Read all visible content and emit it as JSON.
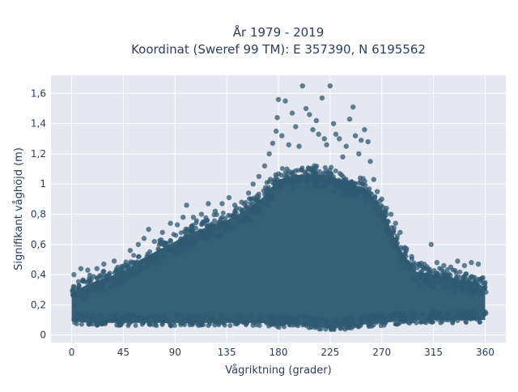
{
  "chart_data": {
    "type": "scatter",
    "title_line1": "År 1979 - 2019",
    "title_line2": "Koordinat (Sweref 99 TM): E 357390, N 6195562",
    "xlabel": "Vågriktning (grader)",
    "ylabel": "Signifikant våghöjd (m)",
    "xlim": [
      -18,
      378
    ],
    "ylim": [
      -0.05,
      1.72
    ],
    "xticks": [
      0,
      45,
      90,
      135,
      180,
      225,
      270,
      315,
      360
    ],
    "xtick_labels": [
      "0",
      "45",
      "90",
      "135",
      "180",
      "225",
      "270",
      "315",
      "360"
    ],
    "yticks": [
      0,
      0.2,
      0.4,
      0.6,
      0.8,
      1.0,
      1.2,
      1.4,
      1.6
    ],
    "ytick_labels": [
      "0",
      "0,2",
      "0,4",
      "0,6",
      "0,8",
      "1",
      "1,2",
      "1,4",
      "1,6"
    ],
    "grid": true,
    "marker_color": "#2f5a72",
    "plot_bgcolor": "#e5e8f1",
    "envelope": {
      "description": "Upper envelope of dense point cloud, direction (degrees) vs wave height (m)",
      "x": [
        0,
        15,
        30,
        45,
        60,
        75,
        90,
        105,
        120,
        135,
        150,
        165,
        180,
        195,
        210,
        225,
        240,
        255,
        270,
        285,
        300,
        315,
        330,
        345,
        360
      ],
      "y_upper": [
        0.3,
        0.36,
        0.4,
        0.44,
        0.52,
        0.58,
        0.64,
        0.7,
        0.74,
        0.78,
        0.84,
        0.92,
        1.05,
        1.08,
        1.08,
        1.08,
        1.02,
        1.0,
        0.86,
        0.6,
        0.44,
        0.42,
        0.4,
        0.38,
        0.34
      ],
      "y_lower": [
        0.07,
        0.06,
        0.06,
        0.06,
        0.06,
        0.06,
        0.06,
        0.06,
        0.06,
        0.06,
        0.06,
        0.06,
        0.05,
        0.05,
        0.04,
        0.02,
        0.04,
        0.05,
        0.06,
        0.07,
        0.08,
        0.08,
        0.08,
        0.08,
        0.08
      ]
    },
    "outliers": [
      {
        "x": 2,
        "y": 0.4
      },
      {
        "x": 8,
        "y": 0.44
      },
      {
        "x": 14,
        "y": 0.43
      },
      {
        "x": 22,
        "y": 0.44
      },
      {
        "x": 28,
        "y": 0.47
      },
      {
        "x": 37,
        "y": 0.49
      },
      {
        "x": 44,
        "y": 0.42
      },
      {
        "x": 51,
        "y": 0.56
      },
      {
        "x": 58,
        "y": 0.6
      },
      {
        "x": 63,
        "y": 0.64
      },
      {
        "x": 67,
        "y": 0.7
      },
      {
        "x": 72,
        "y": 0.62
      },
      {
        "x": 79,
        "y": 0.68
      },
      {
        "x": 86,
        "y": 0.74
      },
      {
        "x": 92,
        "y": 0.73
      },
      {
        "x": 97,
        "y": 0.78
      },
      {
        "x": 100,
        "y": 0.86
      },
      {
        "x": 106,
        "y": 0.78
      },
      {
        "x": 113,
        "y": 0.8
      },
      {
        "x": 119,
        "y": 0.87
      },
      {
        "x": 125,
        "y": 0.82
      },
      {
        "x": 131,
        "y": 0.87
      },
      {
        "x": 137,
        "y": 0.91
      },
      {
        "x": 142,
        "y": 0.86
      },
      {
        "x": 148,
        "y": 0.88
      },
      {
        "x": 154,
        "y": 0.94
      },
      {
        "x": 158,
        "y": 1.0
      },
      {
        "x": 163,
        "y": 1.05
      },
      {
        "x": 168,
        "y": 1.12
      },
      {
        "x": 172,
        "y": 1.2
      },
      {
        "x": 175,
        "y": 1.27
      },
      {
        "x": 178,
        "y": 1.35
      },
      {
        "x": 179,
        "y": 1.44
      },
      {
        "x": 180,
        "y": 1.56
      },
      {
        "x": 183,
        "y": 1.32
      },
      {
        "x": 186,
        "y": 1.55
      },
      {
        "x": 189,
        "y": 1.26
      },
      {
        "x": 192,
        "y": 1.47
      },
      {
        "x": 195,
        "y": 1.38
      },
      {
        "x": 198,
        "y": 1.25
      },
      {
        "x": 201,
        "y": 1.65
      },
      {
        "x": 204,
        "y": 1.5
      },
      {
        "x": 207,
        "y": 1.46
      },
      {
        "x": 210,
        "y": 1.36
      },
      {
        "x": 213,
        "y": 1.42
      },
      {
        "x": 215,
        "y": 1.33
      },
      {
        "x": 218,
        "y": 1.57
      },
      {
        "x": 220,
        "y": 1.3
      },
      {
        "x": 222,
        "y": 1.26
      },
      {
        "x": 225,
        "y": 1.65
      },
      {
        "x": 228,
        "y": 1.4
      },
      {
        "x": 230,
        "y": 1.33
      },
      {
        "x": 233,
        "y": 1.3
      },
      {
        "x": 236,
        "y": 1.18
      },
      {
        "x": 239,
        "y": 1.25
      },
      {
        "x": 242,
        "y": 1.43
      },
      {
        "x": 245,
        "y": 1.51
      },
      {
        "x": 247,
        "y": 1.32
      },
      {
        "x": 250,
        "y": 1.2
      },
      {
        "x": 252,
        "y": 1.29
      },
      {
        "x": 255,
        "y": 1.36
      },
      {
        "x": 258,
        "y": 1.28
      },
      {
        "x": 260,
        "y": 1.15
      },
      {
        "x": 263,
        "y": 1.03
      },
      {
        "x": 266,
        "y": 0.95
      },
      {
        "x": 270,
        "y": 0.9
      },
      {
        "x": 274,
        "y": 0.84
      },
      {
        "x": 278,
        "y": 0.8
      },
      {
        "x": 282,
        "y": 0.74
      },
      {
        "x": 286,
        "y": 0.68
      },
      {
        "x": 290,
        "y": 0.58
      },
      {
        "x": 296,
        "y": 0.52
      },
      {
        "x": 302,
        "y": 0.47
      },
      {
        "x": 308,
        "y": 0.44
      },
      {
        "x": 313,
        "y": 0.6
      },
      {
        "x": 318,
        "y": 0.48
      },
      {
        "x": 324,
        "y": 0.46
      },
      {
        "x": 330,
        "y": 0.45
      },
      {
        "x": 336,
        "y": 0.49
      },
      {
        "x": 342,
        "y": 0.46
      },
      {
        "x": 348,
        "y": 0.48
      },
      {
        "x": 354,
        "y": 0.47
      },
      {
        "x": 358,
        "y": 0.38
      }
    ]
  }
}
